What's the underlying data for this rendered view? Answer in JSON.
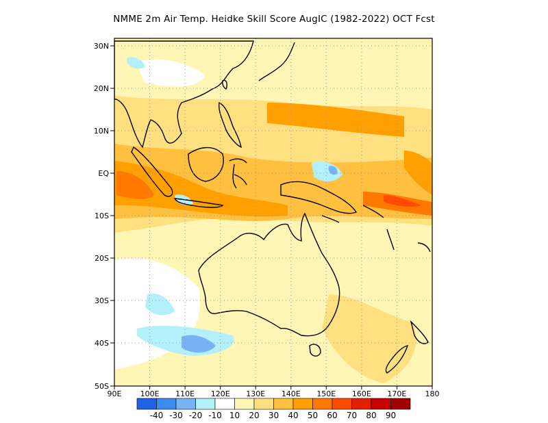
{
  "title": "NMME  2m Air Temp. Heidke Skill Score AugIC (1982-2022) OCT Fcst",
  "map": {
    "lat_ticks": [
      "30N",
      "20N",
      "10N",
      "EQ",
      "10S",
      "20S",
      "30S",
      "40S",
      "50S"
    ],
    "lon_ticks": [
      "90E",
      "100E",
      "110E",
      "120E",
      "130E",
      "140E",
      "150E",
      "160E",
      "170E",
      "180"
    ],
    "lon_range": [
      90,
      180
    ],
    "lat_range": [
      -50,
      32
    ],
    "grid": "dotted"
  },
  "colorbar": {
    "colors": [
      "#1e62e6",
      "#3c8cf0",
      "#78b4f5",
      "#b4f0fa",
      "#ffffff",
      "#fff5b4",
      "#ffe080",
      "#ffc040",
      "#ffa000",
      "#ff7800",
      "#ff4b00",
      "#e61e00",
      "#c80000",
      "#a00000"
    ],
    "labels": [
      "-40",
      "-30",
      "-20",
      "-10",
      "10",
      "20",
      "30",
      "40",
      "50",
      "60",
      "70",
      "80",
      "90"
    ]
  }
}
